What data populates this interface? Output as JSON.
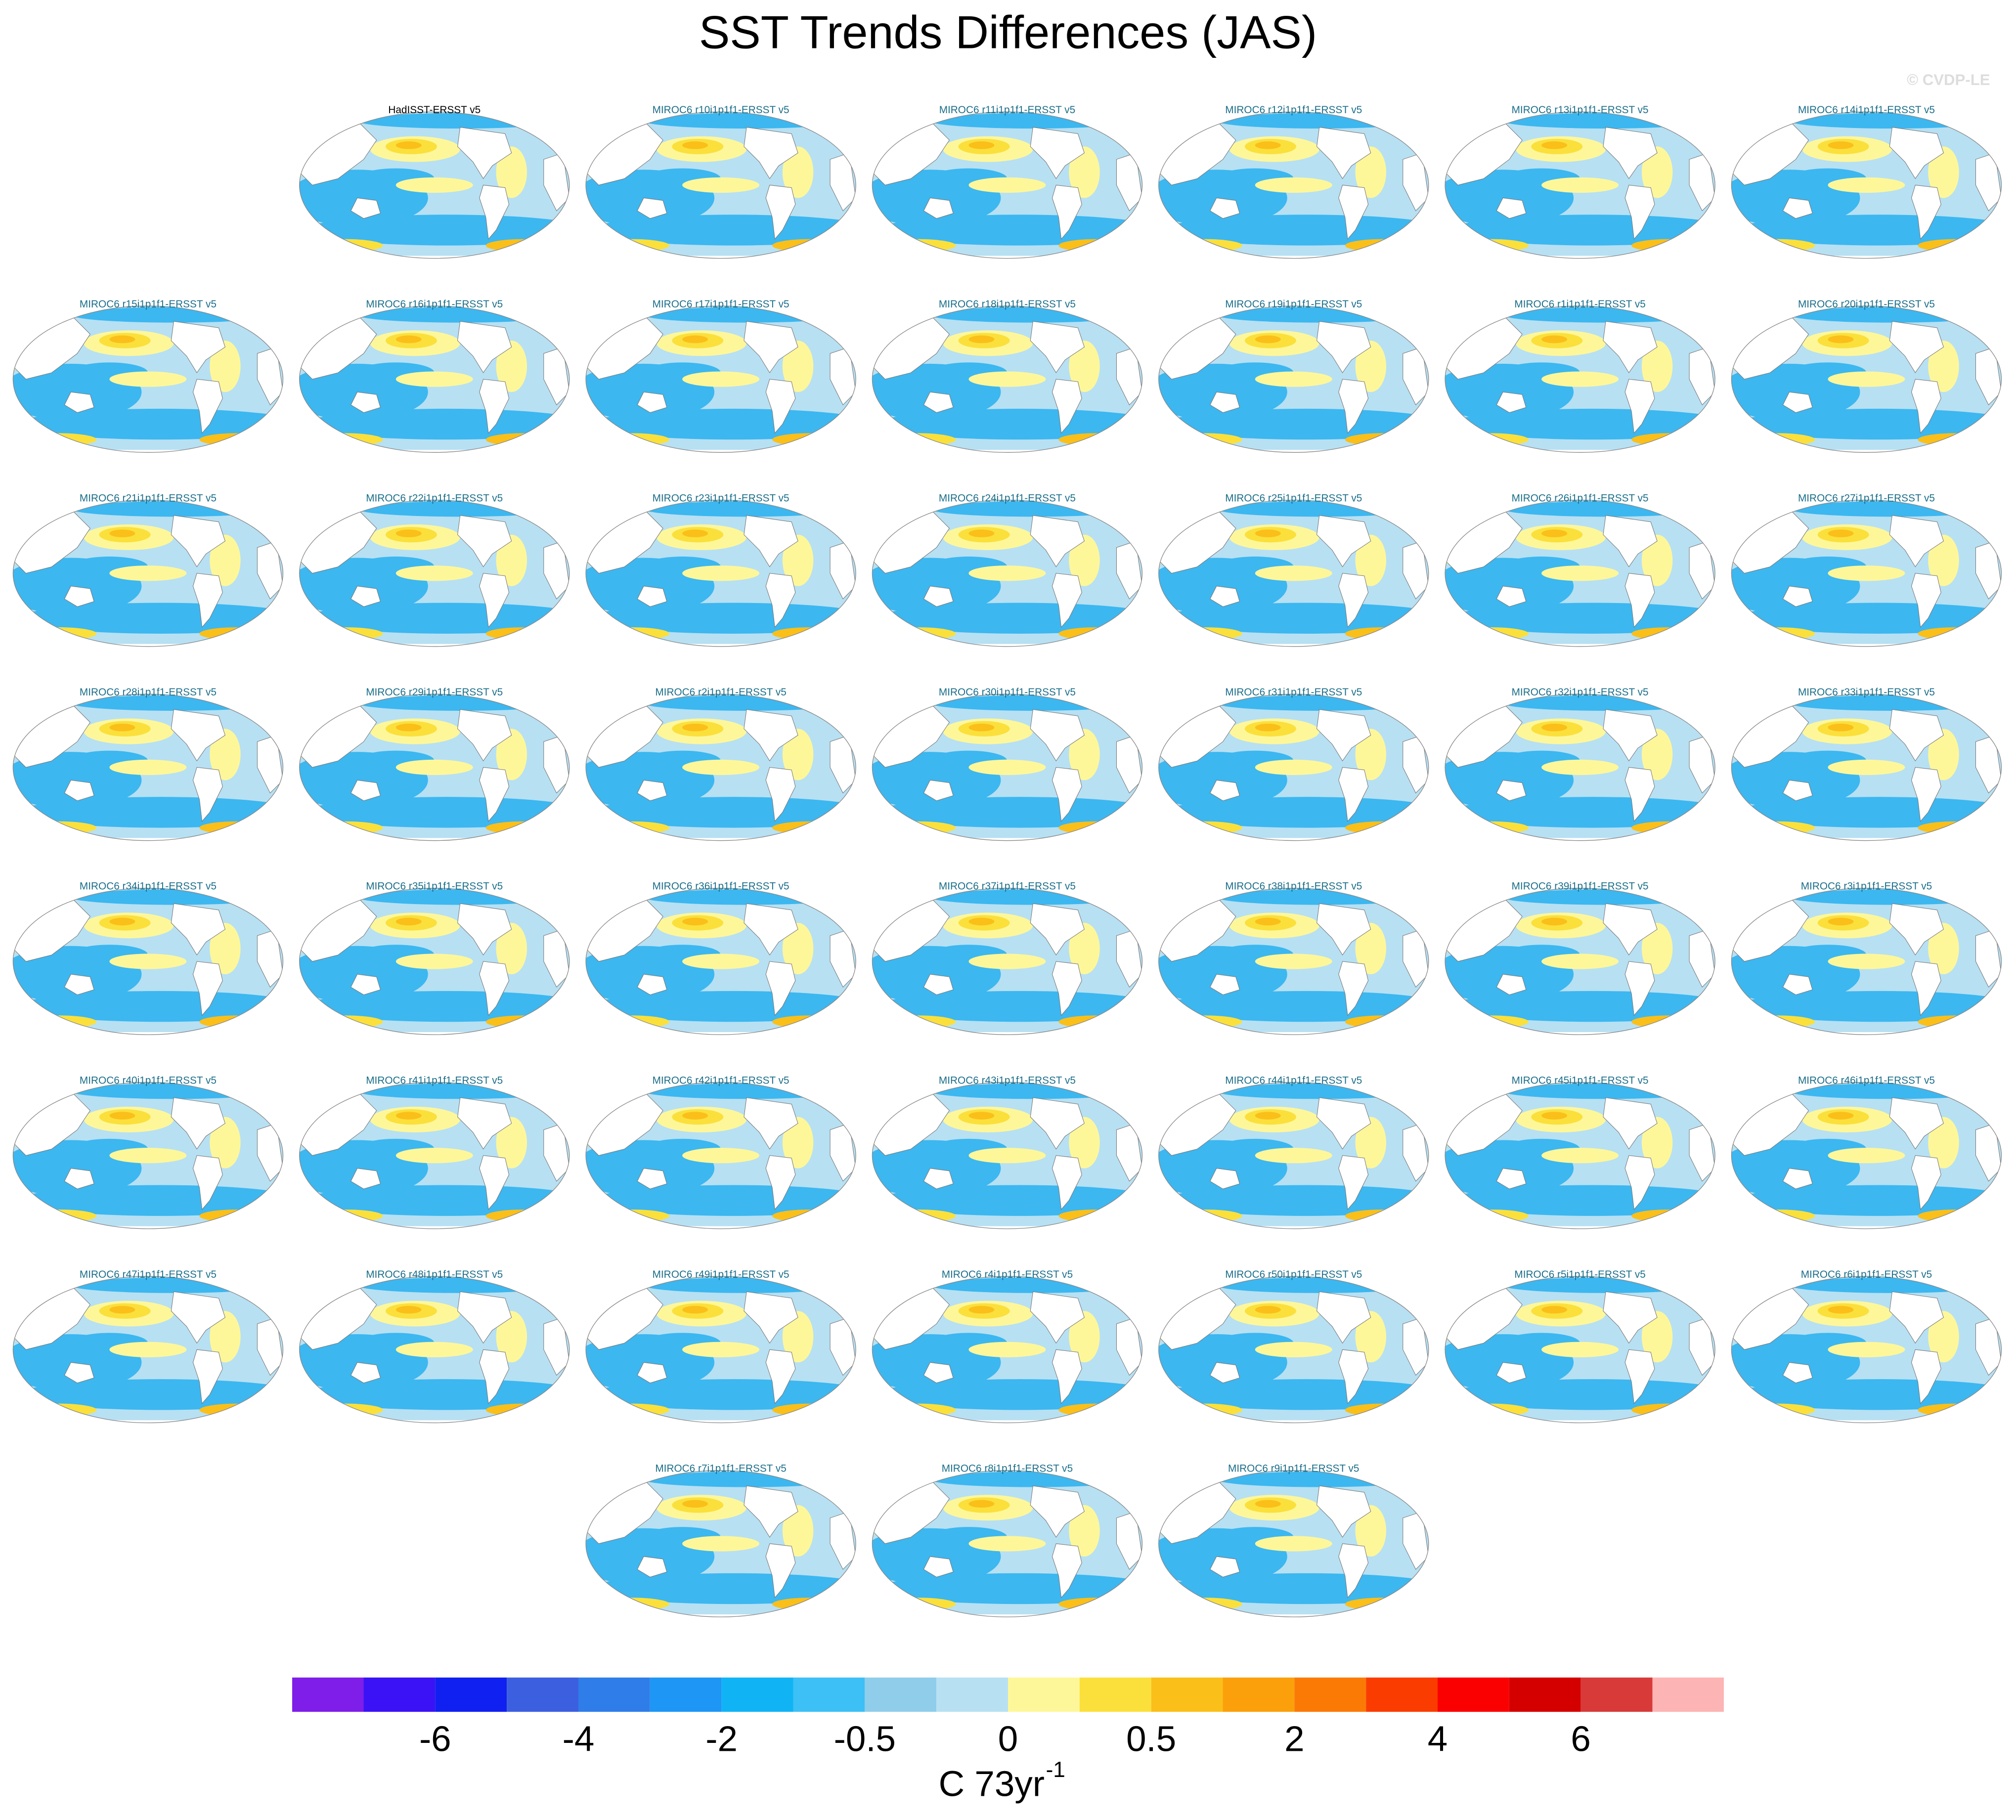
{
  "title": "SST Trends Differences (JAS)",
  "credit": "© CVDP-LE",
  "panels": [
    "HadISST-ERSST v5",
    "MIROC6 r10i1p1f1-ERSST v5",
    "MIROC6 r11i1p1f1-ERSST v5",
    "MIROC6 r12i1p1f1-ERSST v5",
    "MIROC6 r13i1p1f1-ERSST v5",
    "MIROC6 r14i1p1f1-ERSST v5",
    "MIROC6 r15i1p1f1-ERSST v5",
    "MIROC6 r16i1p1f1-ERSST v5",
    "MIROC6 r17i1p1f1-ERSST v5",
    "MIROC6 r18i1p1f1-ERSST v5",
    "MIROC6 r19i1p1f1-ERSST v5",
    "MIROC6 r1i1p1f1-ERSST v5",
    "MIROC6 r20i1p1f1-ERSST v5",
    "MIROC6 r21i1p1f1-ERSST v5",
    "MIROC6 r22i1p1f1-ERSST v5",
    "MIROC6 r23i1p1f1-ERSST v5",
    "MIROC6 r24i1p1f1-ERSST v5",
    "MIROC6 r25i1p1f1-ERSST v5",
    "MIROC6 r26i1p1f1-ERSST v5",
    "MIROC6 r27i1p1f1-ERSST v5",
    "MIROC6 r28i1p1f1-ERSST v5",
    "MIROC6 r29i1p1f1-ERSST v5",
    "MIROC6 r2i1p1f1-ERSST v5",
    "MIROC6 r30i1p1f1-ERSST v5",
    "MIROC6 r31i1p1f1-ERSST v5",
    "MIROC6 r32i1p1f1-ERSST v5",
    "MIROC6 r33i1p1f1-ERSST v5",
    "MIROC6 r34i1p1f1-ERSST v5",
    "MIROC6 r35i1p1f1-ERSST v5",
    "MIROC6 r36i1p1f1-ERSST v5",
    "MIROC6 r37i1p1f1-ERSST v5",
    "MIROC6 r38i1p1f1-ERSST v5",
    "MIROC6 r39i1p1f1-ERSST v5",
    "MIROC6 r3i1p1f1-ERSST v5",
    "MIROC6 r40i1p1f1-ERSST v5",
    "MIROC6 r41i1p1f1-ERSST v5",
    "MIROC6 r42i1p1f1-ERSST v5",
    "MIROC6 r43i1p1f1-ERSST v5",
    "MIROC6 r44i1p1f1-ERSST v5",
    "MIROC6 r45i1p1f1-ERSST v5",
    "MIROC6 r46i1p1f1-ERSST v5",
    "MIROC6 r47i1p1f1-ERSST v5",
    "MIROC6 r48i1p1f1-ERSST v5",
    "MIROC6 r49i1p1f1-ERSST v5",
    "MIROC6 r4i1p1f1-ERSST v5",
    "MIROC6 r50i1p1f1-ERSST v5",
    "MIROC6 r5i1p1f1-ERSST v5",
    "MIROC6 r6i1p1f1-ERSST v5",
    "MIROC6 r7i1p1f1-ERSST v5",
    "MIROC6 r8i1p1f1-ERSST v5",
    "MIROC6 r9i1p1f1-ERSST v5"
  ],
  "colorbar": {
    "colors": [
      "#7e1ee8",
      "#3b12f5",
      "#1020f0",
      "#3c5fe0",
      "#2f7de8",
      "#1e96f5",
      "#10b4f5",
      "#3cc0f5",
      "#8fcdeb",
      "#b7e0f3",
      "#fef79a",
      "#fbe03c",
      "#fbbf1a",
      "#fba00a",
      "#fb7a06",
      "#fb3c00",
      "#fb0000",
      "#d40000",
      "#d83a3a",
      "#fdb4b4"
    ],
    "ticks": [
      -6,
      -4,
      -2,
      -0.5,
      0,
      0.5,
      2,
      4,
      6
    ],
    "units": "C 73yr",
    "units_superscript": "-1"
  }
}
